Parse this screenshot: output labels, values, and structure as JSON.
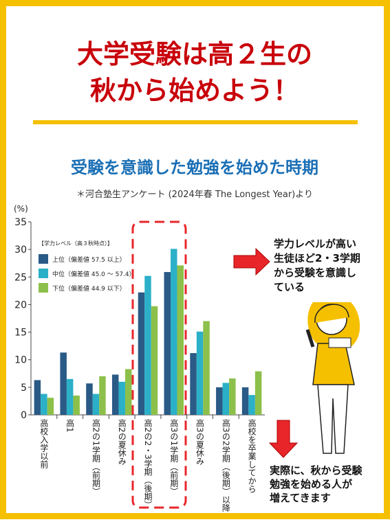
{
  "header": {
    "title_lines": [
      "大学受験は高２生の",
      "秋から始めよう！"
    ]
  },
  "chart_data": {
    "type": "bar",
    "title": "受験を意識した勉強を始めた時期",
    "subtitle": "＊河合塾生アンケート (2024年春 The Longest Year)より",
    "y_label": "(%)",
    "legend_title": "【学力レベル（高３秋時点）】",
    "categories": [
      "高校入学以前",
      "高1",
      "高2の1学期（前期）",
      "高2の夏休み",
      "高2の2・3学期（後期）",
      "高3の1学期（前期）",
      "高3の夏休み",
      "高3の2学期（後期）以降",
      "高校を卒業してから"
    ],
    "series": [
      {
        "name": "上位（偏差値 57.5 以上）",
        "color": "#2a5a86",
        "values": [
          6.3,
          11.3,
          5.7,
          7.3,
          22.2,
          25.9,
          11.2,
          5.0,
          5.0
        ]
      },
      {
        "name": "中位（偏差値 45.0 ～ 57.4）",
        "color": "#2bb0c8",
        "values": [
          3.8,
          6.5,
          3.8,
          6.0,
          25.2,
          30.1,
          15.1,
          5.8,
          3.6
        ]
      },
      {
        "name": "下位（偏差値 44.9 以下）",
        "color": "#8dc04a",
        "values": [
          3.1,
          3.5,
          7.0,
          8.3,
          19.7,
          27.1,
          17.0,
          6.6,
          7.9
        ]
      }
    ],
    "ylim": [
      0,
      35
    ],
    "yticks": [
      0,
      5,
      10,
      15,
      20,
      25,
      30,
      35
    ],
    "grid": false
  },
  "callouts": {
    "right": [
      "学力レベルが高い",
      "生徒ほど2・3学期",
      "から受験を意識し",
      "ている"
    ],
    "bottom": [
      "実際に、秋から受験",
      "勉強を始める人が",
      "増えてきます"
    ]
  }
}
